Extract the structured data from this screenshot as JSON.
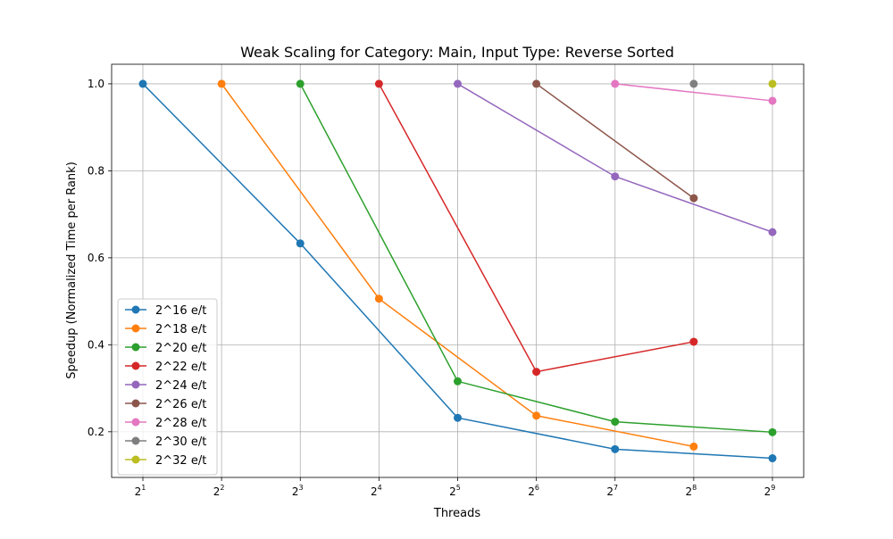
{
  "chart_data": {
    "type": "line",
    "title": "Weak Scaling for Category: Main, Input Type: Reverse Sorted",
    "xlabel": "Threads",
    "ylabel": "Speedup (Normalized Time per Rank)",
    "x_scale": "log2",
    "x_tick_labels": [
      {
        "base": "2",
        "exp": "1"
      },
      {
        "base": "2",
        "exp": "2"
      },
      {
        "base": "2",
        "exp": "3"
      },
      {
        "base": "2",
        "exp": "4"
      },
      {
        "base": "2",
        "exp": "5"
      },
      {
        "base": "2",
        "exp": "6"
      },
      {
        "base": "2",
        "exp": "7"
      },
      {
        "base": "2",
        "exp": "8"
      },
      {
        "base": "2",
        "exp": "9"
      }
    ],
    "x_ticks": [
      2,
      4,
      8,
      16,
      32,
      64,
      128,
      256,
      512
    ],
    "y_ticks": [
      0.2,
      0.4,
      0.6,
      0.8,
      1.0
    ],
    "y_tick_labels": [
      "0.2",
      "0.4",
      "0.6",
      "0.8",
      "1.0"
    ],
    "xlim": [
      2,
      512
    ],
    "ylim": [
      0.095,
      1.045
    ],
    "grid": true,
    "legend_position": "lower-left",
    "series": [
      {
        "name": "2^16 e/t",
        "color": "#1f77b4",
        "x": [
          2,
          8,
          32,
          128,
          512
        ],
        "y": [
          1.0,
          0.633,
          0.232,
          0.16,
          0.139
        ]
      },
      {
        "name": "2^18 e/t",
        "color": "#ff7f0e",
        "x": [
          4,
          16,
          64,
          256
        ],
        "y": [
          1.0,
          0.506,
          0.237,
          0.166
        ]
      },
      {
        "name": "2^20 e/t",
        "color": "#2ca02c",
        "x": [
          8,
          32,
          128,
          512
        ],
        "y": [
          1.0,
          0.316,
          0.223,
          0.199
        ]
      },
      {
        "name": "2^22 e/t",
        "color": "#d62728",
        "x": [
          16,
          64,
          256
        ],
        "y": [
          1.0,
          0.338,
          0.407
        ]
      },
      {
        "name": "2^24 e/t",
        "color": "#9467bd",
        "x": [
          32,
          128,
          512
        ],
        "y": [
          1.0,
          0.787,
          0.659
        ]
      },
      {
        "name": "2^26 e/t",
        "color": "#8c564b",
        "x": [
          64,
          256
        ],
        "y": [
          1.0,
          0.737
        ]
      },
      {
        "name": "2^28 e/t",
        "color": "#e377c2",
        "x": [
          128,
          512
        ],
        "y": [
          1.0,
          0.961
        ]
      },
      {
        "name": "2^30 e/t",
        "color": "#7f7f7f",
        "x": [
          256
        ],
        "y": [
          1.0
        ]
      },
      {
        "name": "2^32 e/t",
        "color": "#bcbd22",
        "x": [
          512
        ],
        "y": [
          1.0
        ]
      }
    ]
  }
}
